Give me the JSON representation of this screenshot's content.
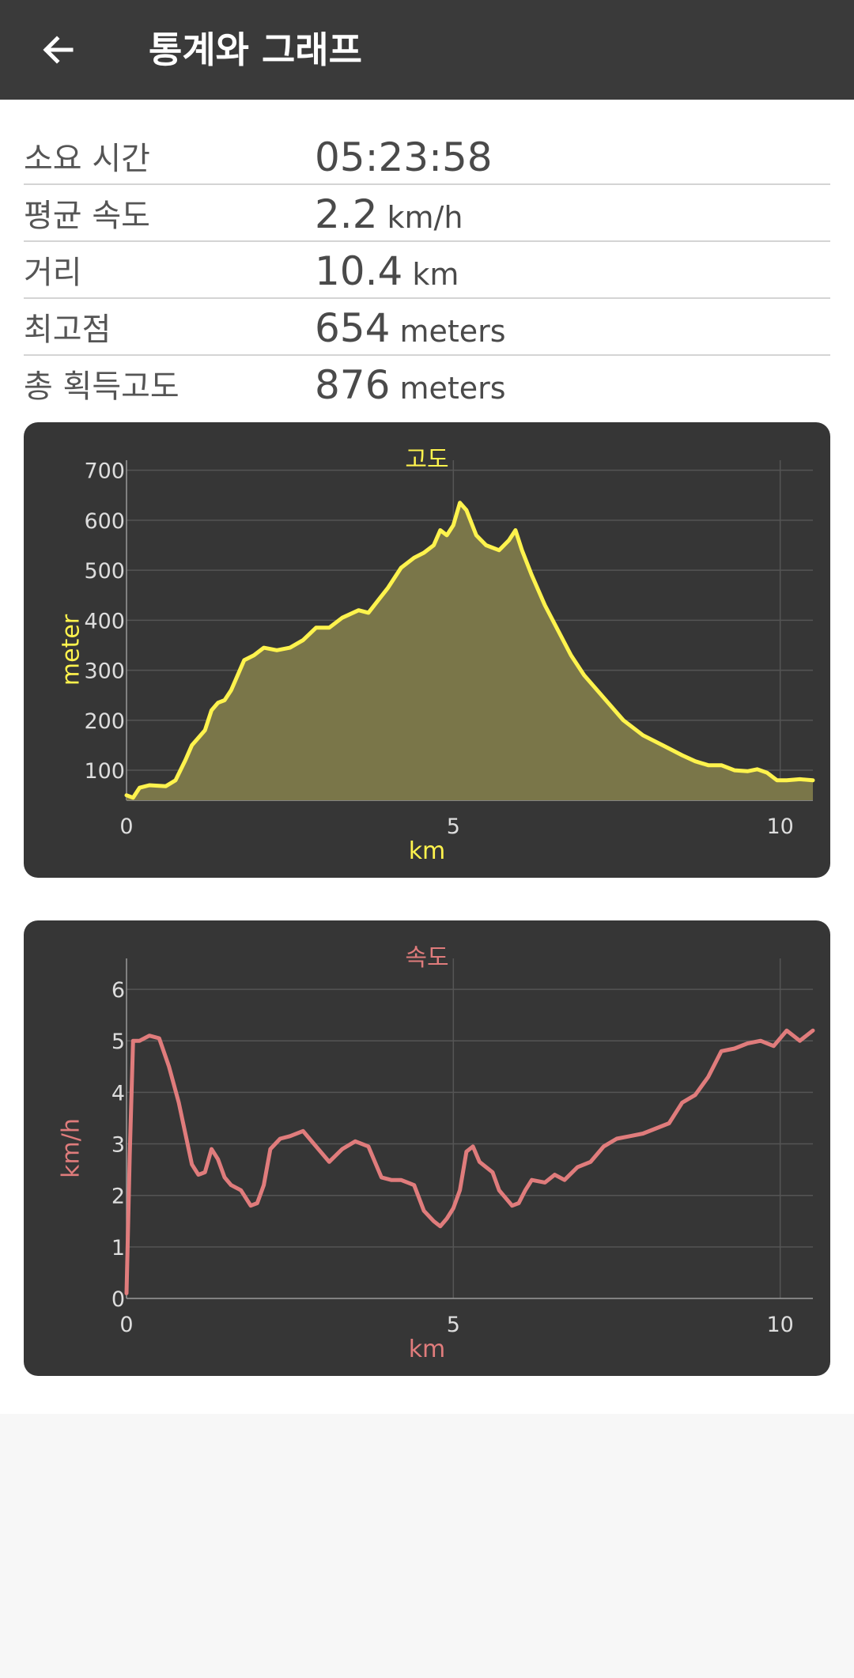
{
  "app_bar": {
    "title": "통계와 그래프",
    "back_icon": "arrow-left-icon"
  },
  "stats": [
    {
      "label": "소요 시간",
      "value": "05:23:58",
      "unit": ""
    },
    {
      "label": "평균 속도",
      "value": "2.2",
      "unit": "km/h"
    },
    {
      "label": "거리",
      "value": "10.4",
      "unit": "km"
    },
    {
      "label": "최고점",
      "value": "654",
      "unit": "meters"
    },
    {
      "label": "총 획득고도",
      "value": "876",
      "unit": "meters"
    }
  ],
  "colors": {
    "app_bar": "#3a3a3a",
    "chart_background": "#363636",
    "elevation_line": "#fff34d",
    "elevation_fill": "#7a7649",
    "speed_line": "#e07c7c",
    "grid": "#555555",
    "tick_text": "#dddddd"
  },
  "chart_data": [
    {
      "type": "area",
      "title": "고도",
      "xlabel": "km",
      "ylabel": "meter",
      "xlim": [
        0,
        10.5
      ],
      "ylim": [
        40,
        720
      ],
      "x_ticks": [
        0,
        5,
        10
      ],
      "y_ticks": [
        100,
        200,
        300,
        400,
        500,
        600,
        700
      ],
      "grid": true,
      "x": [
        0,
        0.1,
        0.2,
        0.35,
        0.6,
        0.75,
        0.9,
        1.0,
        1.2,
        1.3,
        1.4,
        1.5,
        1.6,
        1.8,
        1.95,
        2.1,
        2.3,
        2.5,
        2.7,
        2.9,
        3.1,
        3.3,
        3.55,
        3.7,
        3.85,
        4.0,
        4.2,
        4.4,
        4.55,
        4.7,
        4.8,
        4.9,
        5.0,
        5.1,
        5.2,
        5.35,
        5.5,
        5.7,
        5.85,
        5.95,
        6.05,
        6.2,
        6.4,
        6.6,
        6.8,
        7.0,
        7.3,
        7.6,
        7.9,
        8.2,
        8.5,
        8.7,
        8.9,
        9.1,
        9.3,
        9.5,
        9.65,
        9.8,
        9.95,
        10.1,
        10.3,
        10.5
      ],
      "values": [
        50,
        45,
        65,
        70,
        68,
        80,
        120,
        150,
        180,
        220,
        235,
        240,
        260,
        320,
        330,
        345,
        340,
        345,
        360,
        385,
        385,
        405,
        420,
        415,
        440,
        465,
        505,
        525,
        535,
        550,
        580,
        570,
        590,
        635,
        620,
        570,
        550,
        540,
        560,
        580,
        540,
        490,
        430,
        380,
        330,
        290,
        245,
        200,
        170,
        150,
        130,
        118,
        110,
        110,
        100,
        98,
        102,
        95,
        80,
        80,
        82,
        80
      ]
    },
    {
      "type": "line",
      "title": "속도",
      "xlabel": "km",
      "ylabel": "km/h",
      "xlim": [
        0,
        10.5
      ],
      "ylim": [
        0,
        6.6
      ],
      "x_ticks": [
        0,
        5,
        10
      ],
      "y_ticks": [
        0,
        1,
        2,
        3,
        4,
        5,
        6
      ],
      "grid": true,
      "x": [
        0,
        0.05,
        0.1,
        0.2,
        0.35,
        0.5,
        0.65,
        0.8,
        0.9,
        1.0,
        1.1,
        1.2,
        1.3,
        1.4,
        1.5,
        1.6,
        1.75,
        1.9,
        2.0,
        2.1,
        2.2,
        2.35,
        2.5,
        2.7,
        2.9,
        3.1,
        3.3,
        3.5,
        3.7,
        3.8,
        3.9,
        4.05,
        4.2,
        4.3,
        4.4,
        4.55,
        4.7,
        4.8,
        4.9,
        5.0,
        5.1,
        5.2,
        5.3,
        5.4,
        5.5,
        5.6,
        5.7,
        5.9,
        6.0,
        6.1,
        6.2,
        6.4,
        6.55,
        6.7,
        6.9,
        7.1,
        7.3,
        7.5,
        7.7,
        7.9,
        8.1,
        8.3,
        8.5,
        8.7,
        8.9,
        9.1,
        9.3,
        9.5,
        9.7,
        9.9,
        10.1,
        10.3,
        10.5
      ],
      "values": [
        0.1,
        2.8,
        5.0,
        5.0,
        5.1,
        5.05,
        4.5,
        3.8,
        3.2,
        2.6,
        2.4,
        2.45,
        2.9,
        2.7,
        2.35,
        2.2,
        2.1,
        1.8,
        1.85,
        2.2,
        2.9,
        3.1,
        3.15,
        3.25,
        2.95,
        2.65,
        2.9,
        3.05,
        2.95,
        2.65,
        2.35,
        2.3,
        2.3,
        2.25,
        2.2,
        1.7,
        1.5,
        1.4,
        1.55,
        1.75,
        2.1,
        2.85,
        2.95,
        2.65,
        2.55,
        2.45,
        2.1,
        1.8,
        1.85,
        2.1,
        2.3,
        2.25,
        2.4,
        2.3,
        2.55,
        2.65,
        2.95,
        3.1,
        3.15,
        3.2,
        3.3,
        3.4,
        3.8,
        3.95,
        4.3,
        4.8,
        4.85,
        4.95,
        5.0,
        4.9,
        5.2,
        5.0,
        5.2
      ]
    }
  ]
}
